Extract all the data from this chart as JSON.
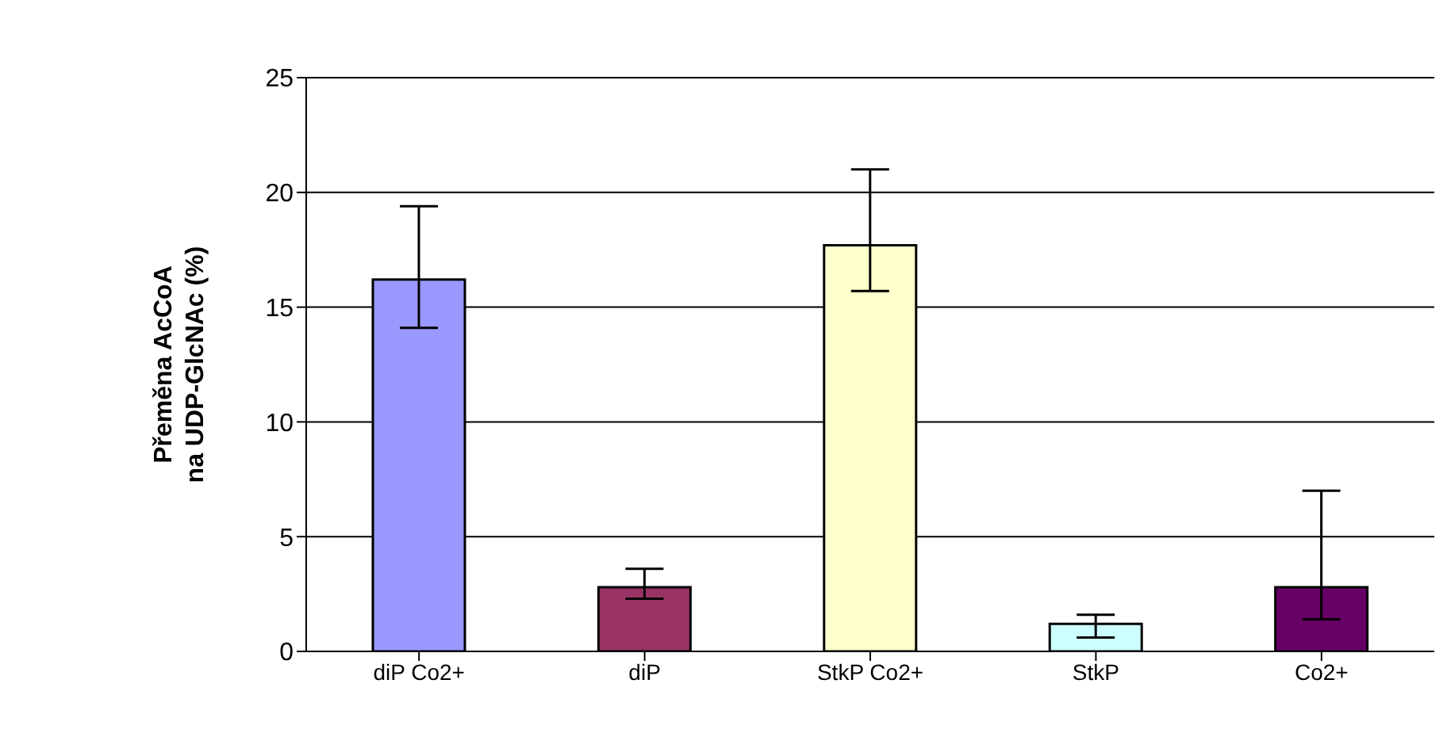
{
  "chart_data": {
    "type": "bar",
    "ylabel": "Přeměna AcCoA\nna UDP-GlcNAc (%)",
    "categories": [
      "diP Co2+",
      "diP",
      "StkP Co2+",
      "StkP",
      "Co2+"
    ],
    "values": [
      16.2,
      2.8,
      17.7,
      1.2,
      2.8
    ],
    "colors": [
      "#9999ff",
      "#993366",
      "#ffffcc",
      "#ccffff",
      "#660066"
    ],
    "errors": [
      [
        14.1,
        19.4
      ],
      [
        2.3,
        3.6
      ],
      [
        15.7,
        21.0
      ],
      [
        0.6,
        1.6
      ],
      [
        1.4,
        7.0
      ]
    ],
    "ylim": [
      0,
      25
    ],
    "yticks": [
      0,
      5,
      10,
      15,
      20,
      25
    ],
    "grid": "y",
    "legend": false
  }
}
